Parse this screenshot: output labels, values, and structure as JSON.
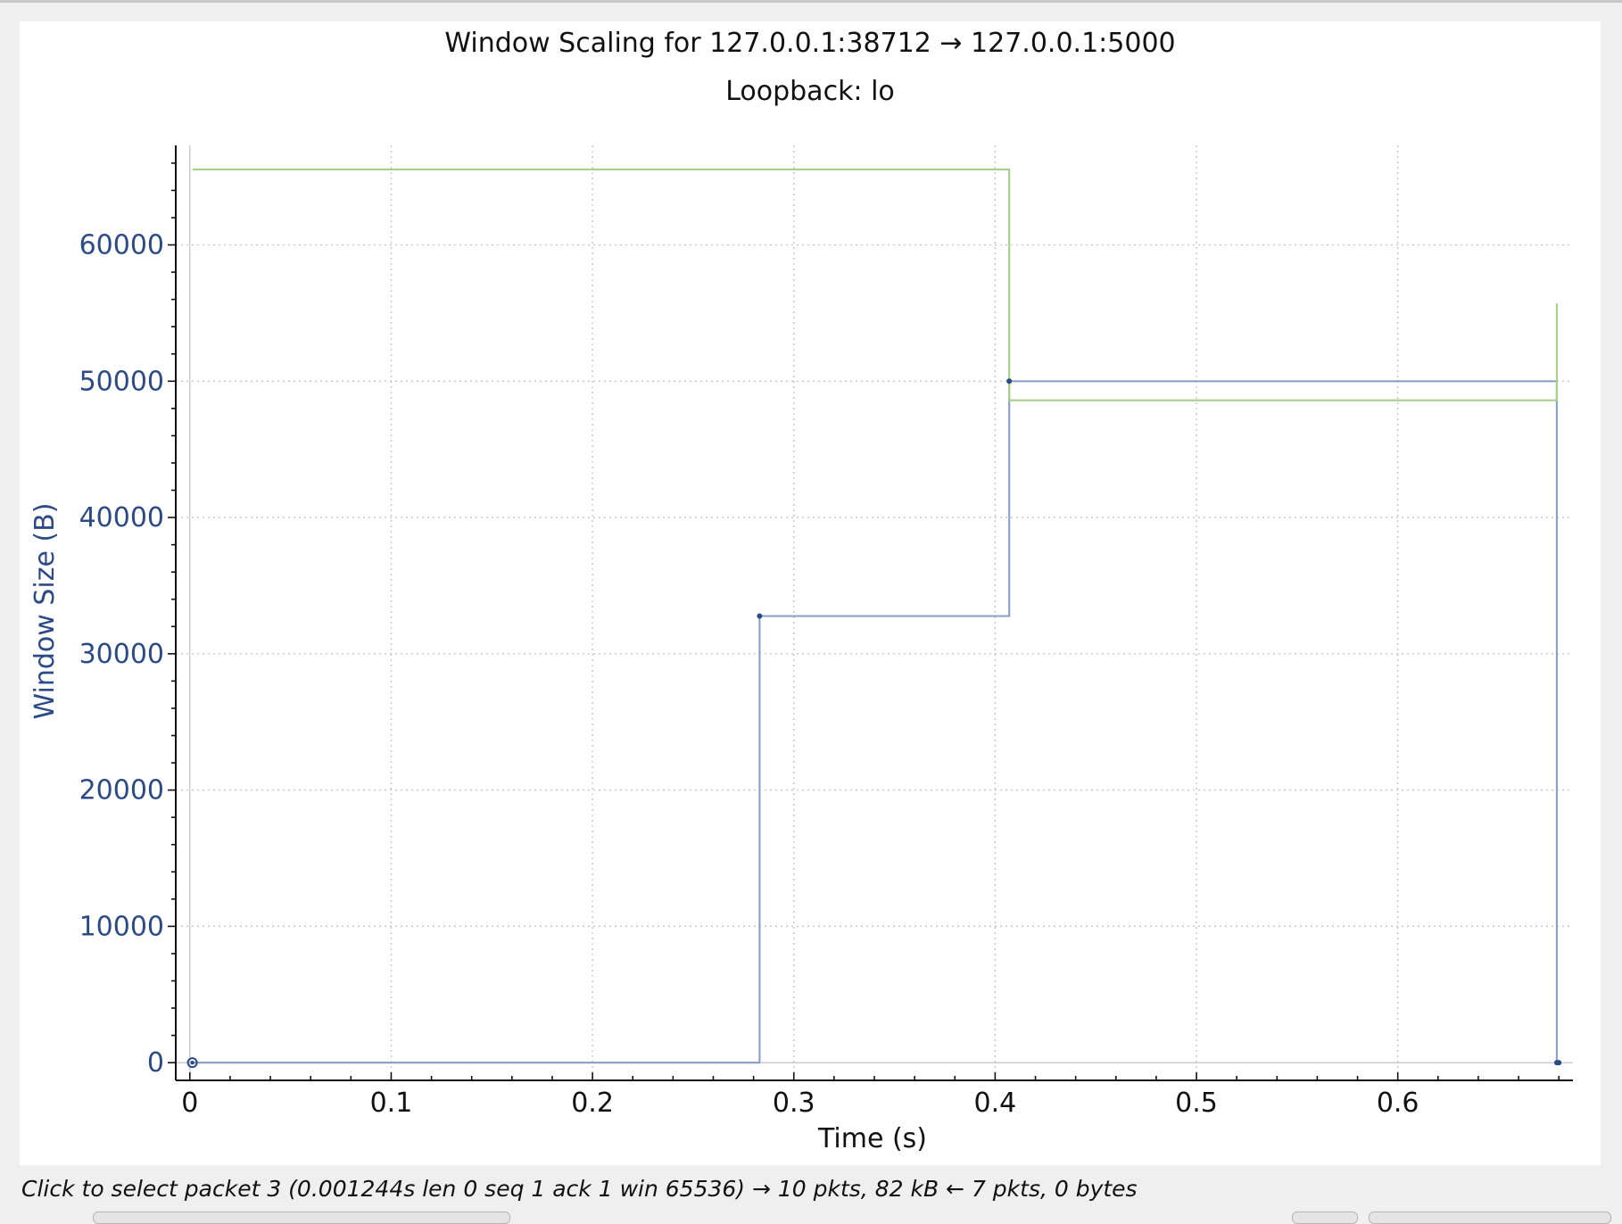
{
  "window": {
    "status_text": "Click to select packet 3 (0.001244s len 0 seq 1 ack 1 win 65536) → 10 pkts, 82 kB ← 7 pkts, 0 bytes"
  },
  "chart_data": {
    "type": "line",
    "title": "Window Scaling for 127.0.0.1:38712 → 127.0.0.1:5000",
    "subtitle": "Loopback: lo",
    "xlabel": "Time (s)",
    "ylabel": "Window Size (B)",
    "xlim": [
      -0.007,
      0.687
    ],
    "ylim": [
      -1300,
      67300
    ],
    "x_ticks": [
      0,
      0.1,
      0.2,
      0.3,
      0.4,
      0.5,
      0.6
    ],
    "x_tick_labels": [
      "0",
      "0.1",
      "0.2",
      "0.3",
      "0.4",
      "0.5",
      "0.6"
    ],
    "y_ticks": [
      0,
      10000,
      20000,
      30000,
      40000,
      50000,
      60000
    ],
    "y_tick_labels": [
      "0",
      "10000",
      "20000",
      "30000",
      "40000",
      "50000",
      "60000"
    ],
    "grid": true,
    "series": [
      {
        "role": "bytes-in-flight",
        "color": "#8ea2c8",
        "step": true,
        "x": [
          0.001244,
          0.283,
          0.407,
          0.679,
          0.679,
          0.68
        ],
        "y": [
          0,
          32768,
          50000,
          50000,
          0,
          0
        ],
        "markers": [
          {
            "x": 0.001244,
            "y": 0,
            "shape": "circle"
          },
          {
            "x": 0.283,
            "y": 32768,
            "shape": "dot"
          },
          {
            "x": 0.407,
            "y": 50000,
            "shape": "dot"
          },
          {
            "x": 0.679,
            "y": 0,
            "shape": "dot"
          },
          {
            "x": 0.68,
            "y": 0,
            "shape": "dot"
          }
        ]
      },
      {
        "role": "receive-window",
        "color": "#a8d08d",
        "step": true,
        "x": [
          0.001244,
          0.407,
          0.679,
          0.679
        ],
        "y": [
          65536,
          48600,
          48600,
          55700
        ]
      }
    ]
  }
}
